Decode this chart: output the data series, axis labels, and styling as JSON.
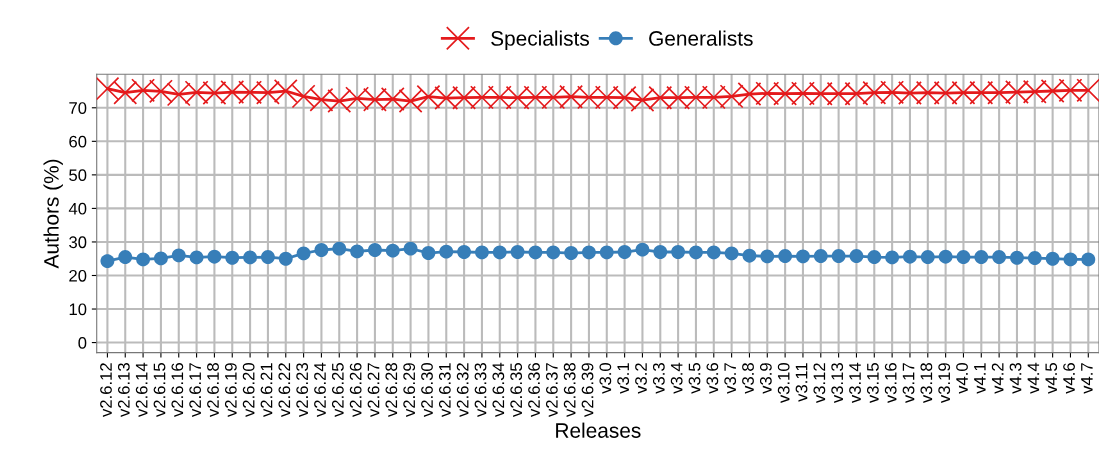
{
  "chart_data": {
    "type": "line",
    "xlabel": "Releases",
    "ylabel": "Authors (%)",
    "categories": [
      "v2.6.12",
      "v2.6.13",
      "v2.6.14",
      "v2.6.15",
      "v2.6.16",
      "v2.6.17",
      "v2.6.18",
      "v2.6.19",
      "v2.6.20",
      "v2.6.21",
      "v2.6.22",
      "v2.6.23",
      "v2.6.24",
      "v2.6.25",
      "v2.6.26",
      "v2.6.27",
      "v2.6.28",
      "v2.6.29",
      "v2.6.30",
      "v2.6.31",
      "v2.6.32",
      "v2.6.33",
      "v2.6.34",
      "v2.6.35",
      "v2.6.36",
      "v2.6.37",
      "v2.6.38",
      "v2.6.39",
      "v3.0",
      "v3.1",
      "v3.2",
      "v3.3",
      "v3.4",
      "v3.5",
      "v3.6",
      "v3.7",
      "v3.8",
      "v3.9",
      "v3.10",
      "v3.11",
      "v3.12",
      "v3.13",
      "v3.14",
      "v3.15",
      "v3.16",
      "v3.17",
      "v3.18",
      "v3.19",
      "v4.0",
      "v4.1",
      "v4.2",
      "v4.3",
      "v4.4",
      "v4.5",
      "v4.6",
      "v4.7"
    ],
    "series": [
      {
        "name": "Specialists",
        "color": "#e41a1c",
        "marker": "cross",
        "values": [
          75.7,
          74.5,
          75.2,
          74.9,
          74.0,
          74.6,
          74.4,
          74.7,
          74.6,
          74.5,
          75.0,
          73.4,
          72.4,
          72.0,
          72.8,
          72.4,
          72.6,
          72.0,
          73.3,
          72.9,
          73.0,
          73.1,
          73.1,
          73.0,
          73.1,
          73.1,
          73.3,
          73.1,
          73.1,
          73.0,
          72.3,
          73.0,
          73.0,
          73.1,
          73.1,
          73.4,
          74.1,
          74.3,
          74.2,
          74.3,
          74.2,
          74.2,
          74.2,
          74.5,
          74.6,
          74.4,
          74.5,
          74.4,
          74.5,
          74.5,
          74.5,
          74.7,
          74.8,
          75.0,
          75.2,
          75.2
        ]
      },
      {
        "name": "Generalists",
        "color": "#377eb8",
        "marker": "circle",
        "values": [
          24.3,
          25.5,
          24.8,
          25.1,
          26.0,
          25.4,
          25.6,
          25.3,
          25.4,
          25.5,
          25.0,
          26.6,
          27.6,
          28.0,
          27.2,
          27.6,
          27.4,
          28.0,
          26.7,
          27.1,
          27.0,
          26.9,
          26.9,
          27.0,
          26.9,
          26.9,
          26.7,
          26.9,
          26.9,
          27.0,
          27.7,
          27.0,
          27.0,
          26.9,
          26.9,
          26.6,
          25.9,
          25.7,
          25.8,
          25.7,
          25.8,
          25.8,
          25.8,
          25.5,
          25.4,
          25.6,
          25.5,
          25.6,
          25.5,
          25.5,
          25.5,
          25.3,
          25.2,
          25.0,
          24.8,
          24.8
        ]
      }
    ],
    "ylim": [
      -3,
      80
    ],
    "yticks": [
      0,
      10,
      20,
      30,
      40,
      50,
      60,
      70
    ],
    "grid": true,
    "legend": "top"
  }
}
